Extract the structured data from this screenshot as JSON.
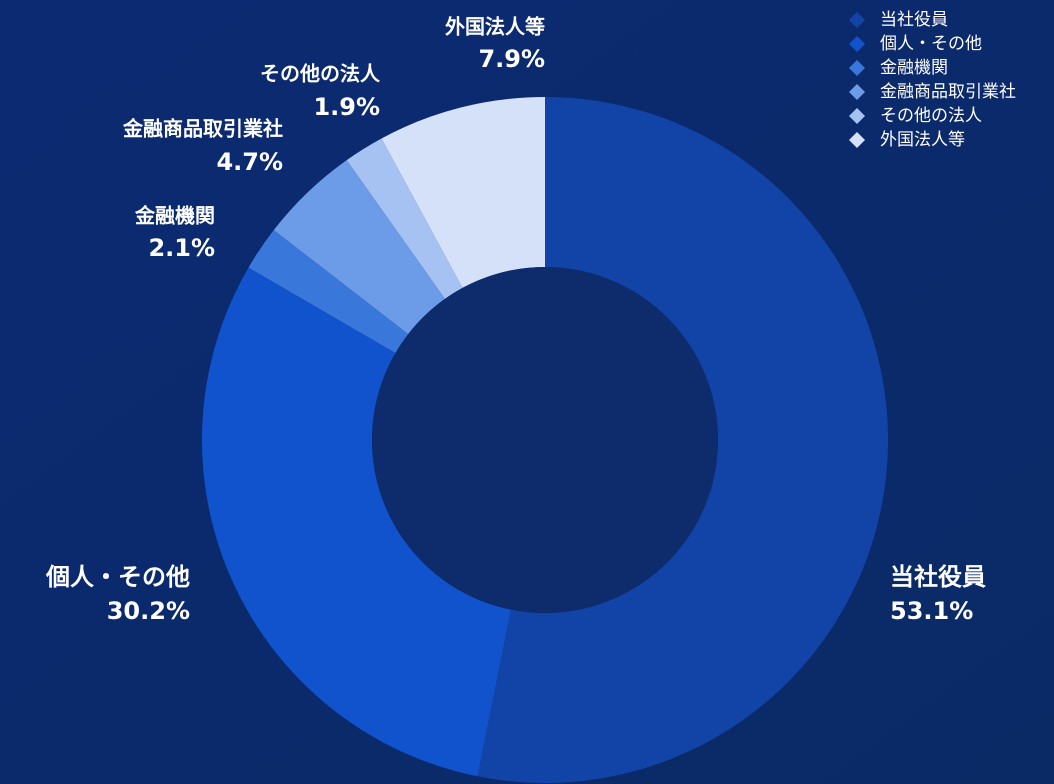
{
  "chart_data": {
    "type": "donut",
    "categories": [
      "当社役員",
      "個人・その他",
      "金融機関",
      "金融商品取引業社",
      "その他の法人",
      "外国法人等"
    ],
    "values": [
      53.1,
      30.2,
      2.1,
      4.7,
      1.9,
      7.9
    ],
    "value_labels": [
      "53.1%",
      "30.2%",
      "2.1%",
      "4.7%",
      "1.9%",
      "7.9%"
    ],
    "colors": [
      "#1244a8",
      "#1153cc",
      "#3a77da",
      "#6c9be8",
      "#a6c2f2",
      "#d4e1f8"
    ],
    "legend": "top-right"
  }
}
